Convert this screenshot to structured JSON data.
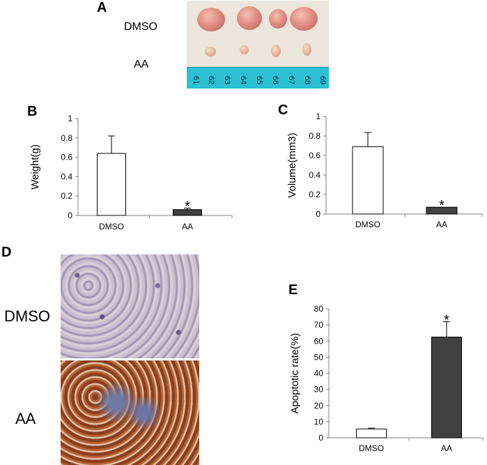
{
  "panels": {
    "a": {
      "letter": "A",
      "row_labels": [
        "DMSO",
        "AA"
      ],
      "ruler_numbers": [
        "61",
        "62",
        "63",
        "64",
        "65",
        "66",
        "67",
        "68",
        "69"
      ]
    },
    "d": {
      "letter": "D",
      "row_labels": [
        "DMSO",
        "AA"
      ]
    }
  },
  "colors": {
    "dmso_bar": "#ffffff",
    "aa_bar": "#404040",
    "axis": "#7f7f7f",
    "text": "#000000"
  },
  "chart_data": [
    {
      "id": "B",
      "letter": "B",
      "type": "bar",
      "categories": [
        "DMSO",
        "AA"
      ],
      "values": [
        0.64,
        0.06
      ],
      "errors": [
        0.18,
        0.015
      ],
      "significance": [
        "",
        "*"
      ],
      "ylabel": "Weight(g)",
      "xlabel": "",
      "ylim": [
        0,
        1
      ],
      "yticks": [
        "0",
        "0.2",
        "0.4",
        "0.6",
        "0.8",
        "1"
      ],
      "grid": false
    },
    {
      "id": "C",
      "letter": "C",
      "type": "bar",
      "categories": [
        "DMSO",
        "AA"
      ],
      "values": [
        0.69,
        0.07
      ],
      "errors": [
        0.145,
        0.0
      ],
      "significance": [
        "",
        "*"
      ],
      "ylabel": "Volume(mm3)",
      "xlabel": "",
      "ylim": [
        0,
        1
      ],
      "yticks": [
        "0",
        "0.2",
        "0.4",
        "0.6",
        "0.8",
        "1"
      ],
      "grid": false
    },
    {
      "id": "E",
      "letter": "E",
      "type": "bar",
      "categories": [
        "DMSO",
        "AA"
      ],
      "values": [
        5.5,
        62.5
      ],
      "errors": [
        0.5,
        9.5
      ],
      "significance": [
        "",
        "*"
      ],
      "ylabel": "Apoptotic rate(%)",
      "xlabel": "",
      "ylim": [
        0,
        80
      ],
      "yticks": [
        "0",
        "10",
        "20",
        "30",
        "40",
        "50",
        "60",
        "70",
        "80"
      ],
      "grid": false
    }
  ]
}
